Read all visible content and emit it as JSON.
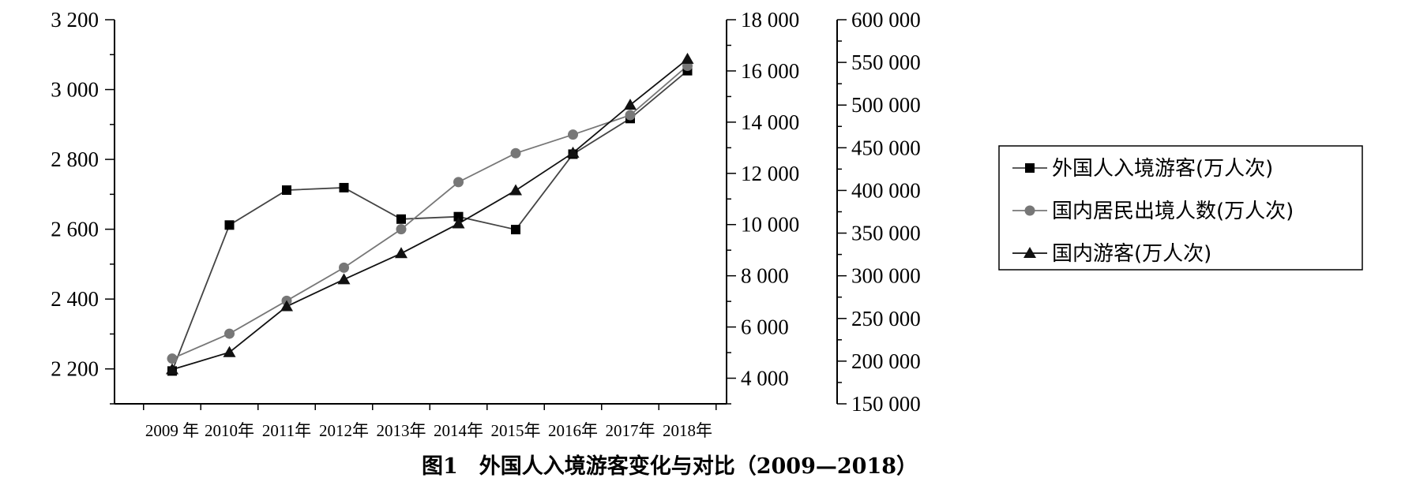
{
  "chart_data": {
    "type": "line",
    "caption": "图1　外国人入境游客变化与对比（2009—2018）",
    "categories": [
      "2009 年",
      "2010年",
      "2011年",
      "2012年",
      "2013年",
      "2014年",
      "2015年",
      "2016年",
      "2017年",
      "2018年"
    ],
    "axes": [
      {
        "id": "left",
        "ylim": [
          2100,
          3200
        ],
        "ticks": [
          2200,
          2400,
          2600,
          2800,
          3000,
          3200
        ],
        "tick_labels": [
          "2 200",
          "2 400",
          "2 600",
          "2 800",
          "3 000",
          "3 200"
        ]
      },
      {
        "id": "middle",
        "ylim": [
          3000,
          18000
        ],
        "ticks": [
          4000,
          6000,
          8000,
          10000,
          12000,
          14000,
          16000,
          18000
        ],
        "tick_labels": [
          "4 000",
          "6 000",
          "8 000",
          "10 000",
          "12 000",
          "14 000",
          "16 000",
          "18 000"
        ]
      },
      {
        "id": "right",
        "ylim": [
          150000,
          600000
        ],
        "ticks": [
          150000,
          200000,
          250000,
          300000,
          350000,
          400000,
          450000,
          500000,
          550000,
          600000
        ],
        "tick_labels": [
          "150 000",
          "200 000",
          "250 000",
          "300 000",
          "350 000",
          "400 000",
          "450 000",
          "500 000",
          "550 000",
          "600 000"
        ]
      }
    ],
    "series": [
      {
        "name": "外国人入境游客(万人次)",
        "axis": "left",
        "marker": "square",
        "color": "#000000",
        "values": [
          2194,
          2612,
          2712,
          2719,
          2629,
          2636,
          2599,
          2815,
          2917,
          3054
        ]
      },
      {
        "name": "国内居民出境人数(万人次)",
        "axis": "middle",
        "marker": "circle",
        "color": "#777777",
        "values": [
          4766,
          5739,
          7025,
          8318,
          9819,
          11659,
          12786,
          13513,
          14273,
          16199
        ]
      },
      {
        "name": "国内游客(万人次)",
        "axis": "right",
        "marker": "triangle",
        "color": "#111111",
        "values": [
          190200,
          210300,
          264100,
          295700,
          326200,
          361100,
          400000,
          444000,
          500100,
          553900
        ]
      }
    ],
    "legend_position": "right",
    "grid": false
  }
}
